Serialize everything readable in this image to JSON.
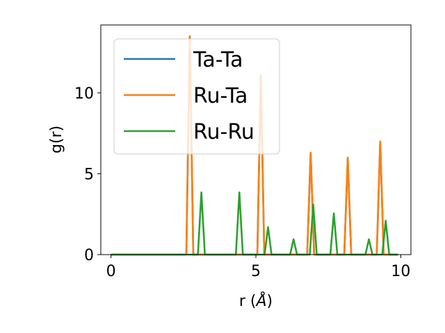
{
  "chart_data": {
    "type": "line",
    "title": "",
    "xlabel": "r (",
    "xlabel_unit": "Å",
    "xlabel_close": ")",
    "ylabel": "g(r)",
    "xlim": [
      -0.35,
      10.35
    ],
    "ylim": [
      0,
      14.2
    ],
    "xticks": [
      0,
      5,
      10
    ],
    "yticks": [
      0,
      5,
      10
    ],
    "xtick_labels": [
      "0",
      "5",
      "10"
    ],
    "ytick_labels": [
      "0",
      "5",
      "10"
    ],
    "grid": false,
    "legend_position": "upper left",
    "series": [
      {
        "name": "Ta-Ta",
        "color": "#1f77b4",
        "x": [
          0,
          2.6,
          2.72,
          2.84,
          5.05,
          5.17,
          5.29,
          6.77,
          6.89,
          7.01,
          8.05,
          8.17,
          8.29,
          9.17,
          9.29,
          9.41,
          9.9
        ],
        "y": [
          0,
          0,
          13.5,
          0,
          0,
          11.1,
          0,
          0,
          6.3,
          0,
          0,
          6.0,
          0,
          0,
          7.0,
          0,
          0
        ]
      },
      {
        "name": "Ru-Ta",
        "color": "#ff7f0e",
        "x": [
          0,
          2.6,
          2.72,
          2.84,
          5.05,
          5.17,
          5.29,
          6.77,
          6.89,
          7.01,
          8.05,
          8.17,
          8.29,
          9.17,
          9.29,
          9.41,
          9.9
        ],
        "y": [
          0,
          0,
          13.5,
          0,
          0,
          11.1,
          0,
          0,
          6.3,
          0,
          0,
          6.0,
          0,
          0,
          7.0,
          0,
          0
        ]
      },
      {
        "name": "Ru-Ru",
        "color": "#2ca02c",
        "x": [
          0,
          3.0,
          3.12,
          3.24,
          4.31,
          4.43,
          4.55,
          5.3,
          5.42,
          5.54,
          6.18,
          6.3,
          6.42,
          6.86,
          6.98,
          7.1,
          7.57,
          7.69,
          7.81,
          8.78,
          8.9,
          9.02,
          9.36,
          9.48,
          9.6,
          9.9
        ],
        "y": [
          0,
          0,
          3.85,
          0,
          0,
          3.85,
          0,
          0,
          1.7,
          0,
          0,
          0.95,
          0,
          0,
          3.1,
          0,
          0,
          2.55,
          0,
          0,
          0.95,
          0,
          0,
          2.1,
          0,
          0
        ]
      }
    ]
  }
}
